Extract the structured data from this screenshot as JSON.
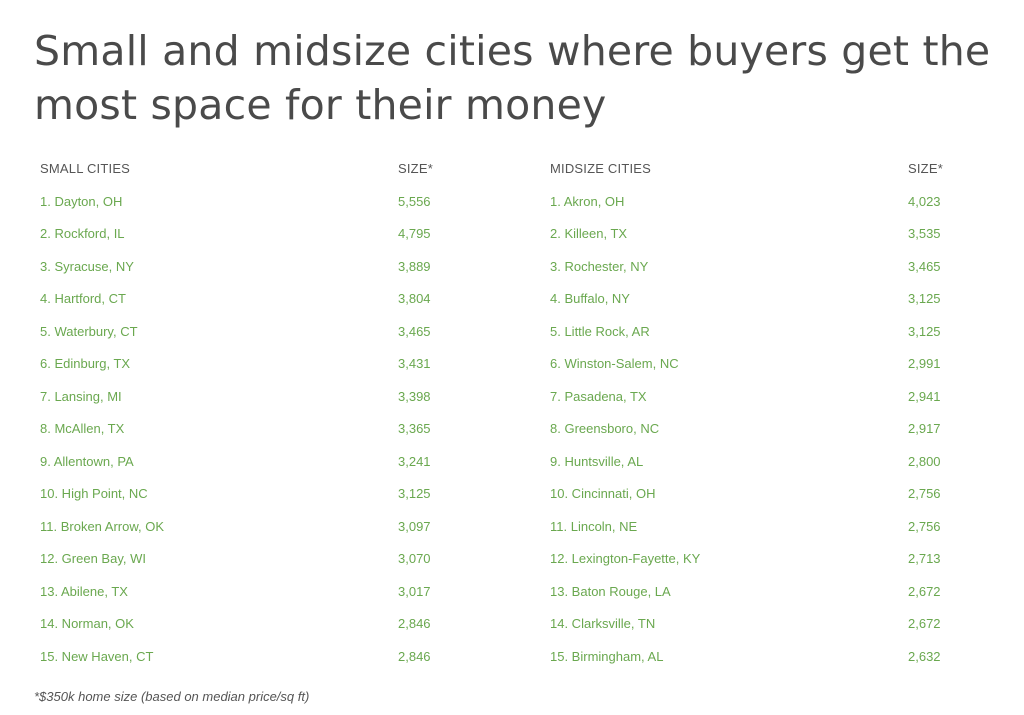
{
  "title": "Small and midsize cities where buyers get the most space for their money",
  "small": {
    "header_name": "SMALL CITIES",
    "header_size": "SIZE*",
    "rows": [
      {
        "name": "1. Dayton, OH",
        "size": "5,556"
      },
      {
        "name": "2. Rockford, IL",
        "size": "4,795"
      },
      {
        "name": "3. Syracuse, NY",
        "size": "3,889"
      },
      {
        "name": "4. Hartford, CT",
        "size": "3,804"
      },
      {
        "name": "5. Waterbury, CT",
        "size": "3,465"
      },
      {
        "name": "6. Edinburg, TX",
        "size": "3,431"
      },
      {
        "name": "7. Lansing, MI",
        "size": "3,398"
      },
      {
        "name": "8. McAllen, TX",
        "size": "3,365"
      },
      {
        "name": "9. Allentown, PA",
        "size": "3,241"
      },
      {
        "name": "10. High Point, NC",
        "size": "3,125"
      },
      {
        "name": "11. Broken Arrow, OK",
        "size": "3,097"
      },
      {
        "name": "12. Green Bay, WI",
        "size": "3,070"
      },
      {
        "name": "13. Abilene, TX",
        "size": "3,017"
      },
      {
        "name": "14. Norman, OK",
        "size": "2,846"
      },
      {
        "name": "15. New Haven, CT",
        "size": "2,846"
      }
    ]
  },
  "midsize": {
    "header_name": "MIDSIZE CITIES",
    "header_size": "SIZE*",
    "rows": [
      {
        "name": "1. Akron, OH",
        "size": "4,023"
      },
      {
        "name": "2. Killeen, TX",
        "size": "3,535"
      },
      {
        "name": "3. Rochester, NY",
        "size": "3,465"
      },
      {
        "name": "4. Buffalo, NY",
        "size": "3,125"
      },
      {
        "name": "5. Little Rock, AR",
        "size": "3,125"
      },
      {
        "name": "6. Winston-Salem, NC",
        "size": "2,991"
      },
      {
        "name": "7. Pasadena, TX",
        "size": "2,941"
      },
      {
        "name": "8. Greensboro, NC",
        "size": "2,917"
      },
      {
        "name": "9. Huntsville, AL",
        "size": "2,800"
      },
      {
        "name": "10. Cincinnati, OH",
        "size": "2,756"
      },
      {
        "name": "11. Lincoln, NE",
        "size": "2,756"
      },
      {
        "name": "12. Lexington-Fayette, KY",
        "size": "2,713"
      },
      {
        "name": "13. Baton Rouge, LA",
        "size": "2,672"
      },
      {
        "name": "14. Clarksville, TN",
        "size": "2,672"
      },
      {
        "name": "15. Birmingham, AL",
        "size": "2,632"
      }
    ]
  },
  "footnote": "*$350k home size (based on median price/sq ft)",
  "colors": {
    "title": "#4a4a4a",
    "header": "#555555",
    "row_text": "#6aa84f"
  }
}
